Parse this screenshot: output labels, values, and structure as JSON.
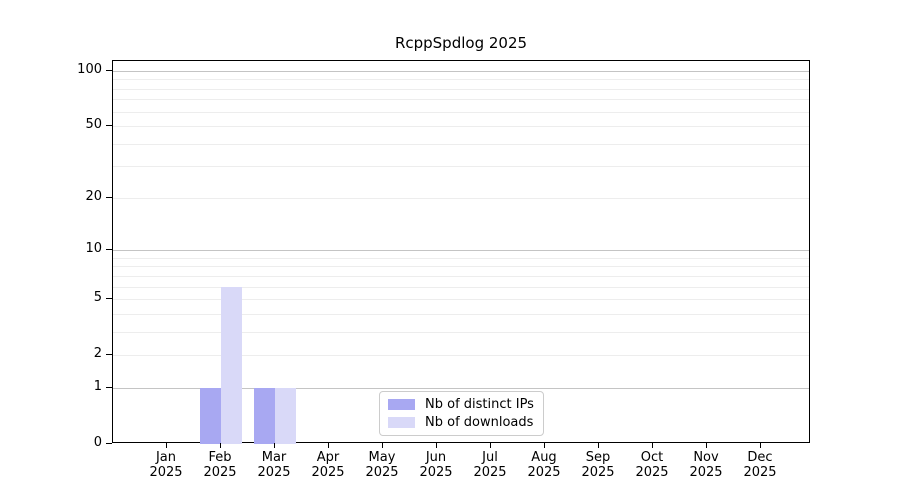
{
  "chart_data": {
    "type": "bar",
    "title": "RcppSpdlog 2025",
    "xlabel": "",
    "ylabel": "",
    "year": "2025",
    "categories": [
      "Jan",
      "Feb",
      "Mar",
      "Apr",
      "May",
      "Jun",
      "Jul",
      "Aug",
      "Sep",
      "Oct",
      "Nov",
      "Dec"
    ],
    "series": [
      {
        "name": "Nb of distinct IPs",
        "color": "#a8a8f2",
        "values": [
          0,
          1,
          1,
          0,
          0,
          0,
          0,
          0,
          0,
          0,
          0,
          0
        ]
      },
      {
        "name": "Nb of downloads",
        "color": "#d9d9f8",
        "values": [
          0,
          6,
          1,
          0,
          0,
          0,
          0,
          0,
          0,
          0,
          0,
          0
        ]
      }
    ],
    "yscale": "log1p",
    "ylim": [
      0,
      113
    ],
    "yticks": [
      0,
      1,
      2,
      5,
      10,
      20,
      50,
      100
    ],
    "major_gridlines": [
      1,
      10,
      100
    ],
    "minor_gridlines": [
      2,
      3,
      4,
      5,
      6,
      7,
      8,
      9,
      20,
      30,
      40,
      50,
      60,
      70,
      80,
      90
    ],
    "grid": true,
    "legend_position": "lower center",
    "colors": {
      "grid_major": "#c4c4c4",
      "grid_minor": "#ededed",
      "spine": "#000000",
      "legend_border": "#cccccc"
    }
  }
}
